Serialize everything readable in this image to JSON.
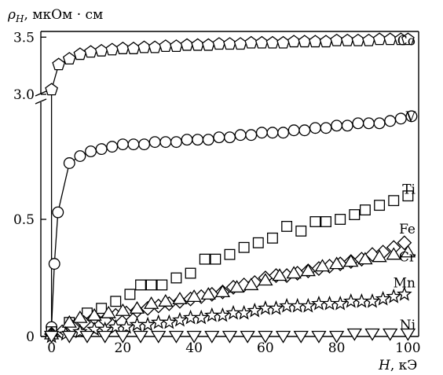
{
  "chart_data": {
    "type": "scatter",
    "title": "",
    "ylabel_symbol": "ρ",
    "ylabel_sub": "H",
    "ylabel_units": ", мкОм · см",
    "xlabel_symbol": "H",
    "xlabel_units": ", кЭ",
    "xlim": [
      -3,
      103
    ],
    "x_ticks": [
      "0",
      "20",
      "40",
      "60",
      "80",
      "100"
    ],
    "x_tick_values": [
      0,
      20,
      40,
      60,
      80,
      100
    ],
    "y_ticks_lower": [
      "0",
      "0.5"
    ],
    "y_ticks_lower_values": [
      0,
      0.5
    ],
    "y_ticks_upper": [
      "3.0",
      "3.5"
    ],
    "y_ticks_upper_values": [
      3.0,
      3.5
    ],
    "ylim_lower": [
      0,
      1.0
    ],
    "ylim_upper": [
      3.0,
      3.55
    ],
    "axis_break": true,
    "grid": false,
    "series": [
      {
        "name": "Co",
        "marker": "pentagon",
        "connected": true,
        "panel": "upper",
        "x": [
          0,
          2,
          5,
          8,
          11,
          14,
          17,
          20,
          23,
          26,
          29,
          32,
          35,
          38,
          41,
          44,
          47,
          50,
          53,
          56,
          59,
          62,
          65,
          68,
          71,
          74,
          77,
          80,
          83,
          86,
          89,
          92,
          95,
          98,
          100
        ],
        "y": [
          3.04,
          3.26,
          3.31,
          3.35,
          3.37,
          3.38,
          3.39,
          3.4,
          3.4,
          3.41,
          3.41,
          3.42,
          3.42,
          3.43,
          3.43,
          3.43,
          3.44,
          3.44,
          3.44,
          3.45,
          3.45,
          3.45,
          3.45,
          3.46,
          3.46,
          3.46,
          3.46,
          3.47,
          3.47,
          3.47,
          3.47,
          3.48,
          3.48,
          3.48,
          3.48
        ]
      },
      {
        "name": "V",
        "marker": "circle",
        "connected": true,
        "panel": "lower",
        "x": [
          0,
          0.8,
          1.8,
          5,
          8,
          11,
          14,
          17,
          20,
          23,
          26,
          29,
          32,
          35,
          38,
          41,
          44,
          47,
          50,
          53,
          56,
          59,
          62,
          65,
          68,
          71,
          74,
          77,
          80,
          83,
          86,
          89,
          92,
          95,
          98,
          101
        ],
        "y": [
          0.04,
          0.31,
          0.53,
          0.74,
          0.77,
          0.79,
          0.8,
          0.81,
          0.82,
          0.82,
          0.82,
          0.83,
          0.83,
          0.83,
          0.84,
          0.84,
          0.84,
          0.85,
          0.85,
          0.86,
          0.86,
          0.87,
          0.87,
          0.87,
          0.88,
          0.88,
          0.89,
          0.89,
          0.9,
          0.9,
          0.91,
          0.91,
          0.91,
          0.92,
          0.93,
          0.94
        ]
      },
      {
        "name": "Ti",
        "marker": "square",
        "connected": false,
        "panel": "lower",
        "x": [
          0,
          5,
          10,
          14,
          18,
          22,
          25,
          28,
          31,
          35,
          39,
          43,
          46,
          50,
          54,
          58,
          62,
          66,
          70,
          74,
          77,
          81,
          85,
          88,
          92,
          96,
          100
        ],
        "y": [
          0.02,
          0.06,
          0.1,
          0.12,
          0.15,
          0.18,
          0.22,
          0.22,
          0.22,
          0.25,
          0.27,
          0.33,
          0.33,
          0.35,
          0.38,
          0.4,
          0.42,
          0.47,
          0.45,
          0.49,
          0.49,
          0.5,
          0.52,
          0.54,
          0.56,
          0.58,
          0.6
        ]
      },
      {
        "name": "Fe",
        "marker": "diamond",
        "connected": false,
        "panel": "lower",
        "x": [
          0,
          3,
          6,
          9,
          12,
          15,
          18,
          21,
          24,
          27,
          30,
          33,
          36,
          39,
          42,
          45,
          48,
          51,
          54,
          57,
          60,
          63,
          66,
          69,
          72,
          75,
          78,
          81,
          84,
          87,
          90,
          93,
          96,
          99
        ],
        "y": [
          0.01,
          0.02,
          0.04,
          0.06,
          0.08,
          0.07,
          0.09,
          0.1,
          0.11,
          0.12,
          0.13,
          0.14,
          0.15,
          0.16,
          0.17,
          0.18,
          0.19,
          0.21,
          0.22,
          0.23,
          0.25,
          0.26,
          0.26,
          0.27,
          0.28,
          0.29,
          0.3,
          0.31,
          0.32,
          0.33,
          0.35,
          0.36,
          0.38,
          0.4
        ]
      },
      {
        "name": "Cr",
        "marker": "triangle-up",
        "connected": false,
        "panel": "lower",
        "x": [
          0,
          5,
          8,
          12,
          16,
          20,
          24,
          28,
          32,
          36,
          40,
          44,
          48,
          52,
          56,
          60,
          64,
          68,
          72,
          76,
          80,
          84,
          88,
          92,
          96,
          100
        ],
        "y": [
          0.01,
          0.06,
          0.08,
          0.09,
          0.1,
          0.11,
          0.12,
          0.14,
          0.15,
          0.16,
          0.17,
          0.18,
          0.19,
          0.21,
          0.22,
          0.24,
          0.26,
          0.27,
          0.28,
          0.3,
          0.31,
          0.32,
          0.33,
          0.34,
          0.35,
          0.36
        ]
      },
      {
        "name": "Mn",
        "marker": "star",
        "connected": false,
        "panel": "lower",
        "x": [
          0,
          4,
          8,
          12,
          15,
          18,
          21,
          24,
          27,
          30,
          33,
          36,
          39,
          42,
          45,
          48,
          51,
          54,
          57,
          60,
          63,
          66,
          69,
          72,
          75,
          78,
          81,
          84,
          87,
          90,
          93,
          96,
          99
        ],
        "y": [
          0.0,
          0.01,
          0.02,
          0.03,
          0.03,
          0.04,
          0.04,
          0.05,
          0.05,
          0.06,
          0.06,
          0.07,
          0.08,
          0.08,
          0.09,
          0.09,
          0.1,
          0.1,
          0.11,
          0.12,
          0.12,
          0.13,
          0.13,
          0.13,
          0.14,
          0.14,
          0.14,
          0.15,
          0.15,
          0.15,
          0.16,
          0.17,
          0.18
        ]
      },
      {
        "name": "Ni",
        "marker": "triangle-down",
        "connected": false,
        "panel": "lower",
        "x": [
          0,
          5,
          10,
          15,
          20,
          25,
          30,
          35,
          40,
          45,
          50,
          55,
          60,
          65,
          70,
          75,
          80,
          85,
          90,
          95,
          100
        ],
        "y": [
          0.0,
          0.0,
          0.0,
          0.0,
          0.0,
          0.0,
          0.0,
          0.0,
          0.0,
          0.0,
          0.0,
          0.0,
          0.0,
          0.0,
          0.0,
          0.0,
          0.0,
          0.01,
          0.01,
          0.01,
          0.01
        ]
      }
    ]
  }
}
